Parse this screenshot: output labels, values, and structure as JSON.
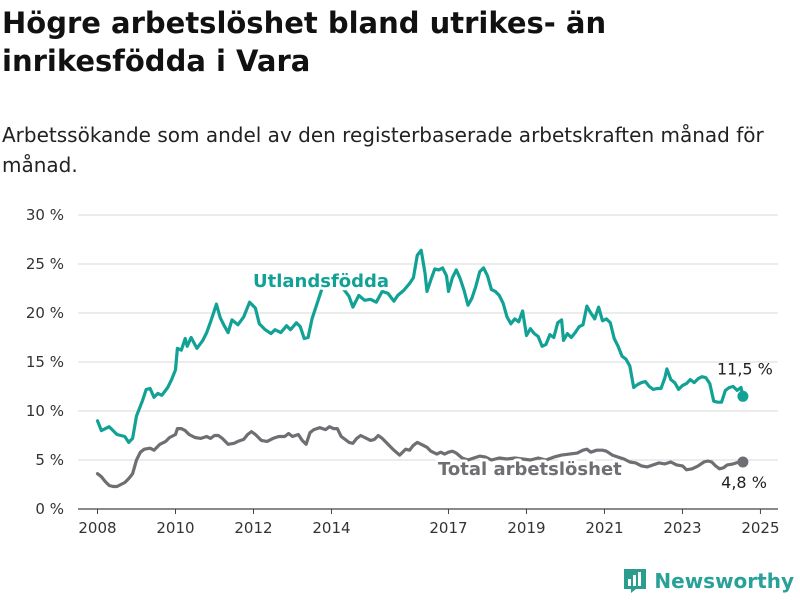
{
  "header": {
    "title": "Högre arbetslöshet bland utrikes- än inrikesfödda i Vara",
    "subtitle": "Arbetssökande som andel av den registerbaserade arbetskraften månad för månad."
  },
  "brand": {
    "name": "Newsworthy",
    "icon": "bar-chart-logo-icon",
    "color": "#2a9d8f"
  },
  "colors": {
    "foreign": "#12a195",
    "total": "#6e6e73",
    "grid": "#d9d9d9",
    "axis": "#444444"
  },
  "chart_data": {
    "type": "line",
    "ylim": [
      0,
      30
    ],
    "y_ticks": [
      0,
      5,
      10,
      15,
      20,
      25,
      30
    ],
    "y_tick_labels": [
      "0 %",
      "5 %",
      "10 %",
      "15 %",
      "20 %",
      "25 %",
      "30 %"
    ],
    "x_ticks": [
      2008,
      2010,
      2012,
      2014,
      2017,
      2019,
      2021,
      2023,
      2025
    ],
    "x_tick_labels": [
      "2008",
      "2010",
      "2012",
      "2014",
      "2017",
      "2019",
      "2021",
      "2023",
      "2025"
    ],
    "series": [
      {
        "name": "Utlandsfödda",
        "end_label": "11,5 %",
        "points": [
          [
            2008.0,
            9.0
          ],
          [
            2008.1,
            8.0
          ],
          [
            2008.3,
            8.4
          ],
          [
            2008.5,
            7.6
          ],
          [
            2008.7,
            7.4
          ],
          [
            2008.8,
            6.8
          ],
          [
            2008.9,
            7.2
          ],
          [
            2009.0,
            9.5
          ],
          [
            2009.15,
            11.0
          ],
          [
            2009.25,
            12.2
          ],
          [
            2009.35,
            12.3
          ],
          [
            2009.45,
            11.4
          ],
          [
            2009.55,
            11.8
          ],
          [
            2009.65,
            11.6
          ],
          [
            2009.8,
            12.4
          ],
          [
            2009.9,
            13.2
          ],
          [
            2010.0,
            14.2
          ],
          [
            2010.05,
            16.4
          ],
          [
            2010.15,
            16.2
          ],
          [
            2010.25,
            17.4
          ],
          [
            2010.3,
            16.6
          ],
          [
            2010.4,
            17.5
          ],
          [
            2010.55,
            16.4
          ],
          [
            2010.7,
            17.2
          ],
          [
            2010.8,
            18.0
          ],
          [
            2010.9,
            19.1
          ],
          [
            2011.0,
            20.3
          ],
          [
            2011.05,
            20.9
          ],
          [
            2011.15,
            19.5
          ],
          [
            2011.25,
            18.7
          ],
          [
            2011.35,
            18.0
          ],
          [
            2011.45,
            19.3
          ],
          [
            2011.6,
            18.8
          ],
          [
            2011.75,
            19.6
          ],
          [
            2011.9,
            21.1
          ],
          [
            2012.05,
            20.5
          ],
          [
            2012.15,
            18.9
          ],
          [
            2012.3,
            18.3
          ],
          [
            2012.45,
            17.9
          ],
          [
            2012.55,
            18.3
          ],
          [
            2012.7,
            18.0
          ],
          [
            2012.85,
            18.7
          ],
          [
            2012.95,
            18.3
          ],
          [
            2013.1,
            19.0
          ],
          [
            2013.2,
            18.6
          ],
          [
            2013.3,
            17.4
          ],
          [
            2013.4,
            17.5
          ],
          [
            2013.5,
            19.4
          ],
          [
            2013.6,
            20.6
          ],
          [
            2013.75,
            22.4
          ],
          [
            2013.85,
            23.2
          ],
          [
            2014.0,
            23.8
          ],
          [
            2014.15,
            23.0
          ],
          [
            2014.3,
            22.5
          ],
          [
            2014.45,
            21.7
          ],
          [
            2014.55,
            20.6
          ],
          [
            2014.7,
            21.8
          ],
          [
            2014.85,
            21.3
          ],
          [
            2015.0,
            21.4
          ],
          [
            2015.15,
            21.1
          ],
          [
            2015.3,
            22.2
          ],
          [
            2015.45,
            22.0
          ],
          [
            2015.6,
            21.2
          ],
          [
            2015.7,
            21.8
          ],
          [
            2015.85,
            22.3
          ],
          [
            2016.0,
            23.0
          ],
          [
            2016.1,
            23.6
          ],
          [
            2016.2,
            25.9
          ],
          [
            2016.3,
            26.4
          ],
          [
            2016.4,
            24.0
          ],
          [
            2016.45,
            22.2
          ],
          [
            2016.55,
            23.4
          ],
          [
            2016.65,
            24.5
          ],
          [
            2016.75,
            24.4
          ],
          [
            2016.85,
            24.6
          ],
          [
            2016.95,
            23.8
          ],
          [
            2017.0,
            22.2
          ],
          [
            2017.1,
            23.6
          ],
          [
            2017.2,
            24.4
          ],
          [
            2017.3,
            23.5
          ],
          [
            2017.4,
            22.3
          ],
          [
            2017.5,
            20.8
          ],
          [
            2017.6,
            21.5
          ],
          [
            2017.7,
            22.7
          ],
          [
            2017.8,
            24.2
          ],
          [
            2017.9,
            24.6
          ],
          [
            2018.0,
            23.8
          ],
          [
            2018.1,
            22.4
          ],
          [
            2018.2,
            22.2
          ],
          [
            2018.3,
            21.8
          ],
          [
            2018.4,
            21.0
          ],
          [
            2018.5,
            19.6
          ],
          [
            2018.6,
            18.9
          ],
          [
            2018.7,
            19.4
          ],
          [
            2018.8,
            19.1
          ],
          [
            2018.9,
            20.2
          ],
          [
            2019.0,
            17.7
          ],
          [
            2019.1,
            18.4
          ],
          [
            2019.2,
            17.9
          ],
          [
            2019.3,
            17.6
          ],
          [
            2019.4,
            16.6
          ],
          [
            2019.5,
            16.8
          ],
          [
            2019.6,
            17.8
          ],
          [
            2019.7,
            17.5
          ],
          [
            2019.8,
            19.0
          ],
          [
            2019.9,
            19.3
          ],
          [
            2019.95,
            17.2
          ],
          [
            2020.05,
            17.9
          ],
          [
            2020.15,
            17.5
          ],
          [
            2020.25,
            18.0
          ],
          [
            2020.35,
            18.6
          ],
          [
            2020.45,
            18.8
          ],
          [
            2020.55,
            20.7
          ],
          [
            2020.65,
            20.0
          ],
          [
            2020.75,
            19.4
          ],
          [
            2020.85,
            20.6
          ],
          [
            2020.95,
            19.2
          ],
          [
            2021.05,
            19.4
          ],
          [
            2021.15,
            19.0
          ],
          [
            2021.25,
            17.4
          ],
          [
            2021.35,
            16.6
          ],
          [
            2021.45,
            15.6
          ],
          [
            2021.55,
            15.3
          ],
          [
            2021.65,
            14.6
          ],
          [
            2021.75,
            12.4
          ],
          [
            2021.85,
            12.7
          ],
          [
            2021.95,
            12.9
          ],
          [
            2022.05,
            13.0
          ],
          [
            2022.15,
            12.5
          ],
          [
            2022.25,
            12.2
          ],
          [
            2022.35,
            12.3
          ],
          [
            2022.45,
            12.3
          ],
          [
            2022.55,
            13.4
          ],
          [
            2022.6,
            14.3
          ],
          [
            2022.7,
            13.2
          ],
          [
            2022.8,
            12.9
          ],
          [
            2022.9,
            12.2
          ],
          [
            2023.0,
            12.6
          ],
          [
            2023.1,
            12.8
          ],
          [
            2023.2,
            13.2
          ],
          [
            2023.3,
            12.9
          ],
          [
            2023.4,
            13.3
          ],
          [
            2023.5,
            13.5
          ],
          [
            2023.6,
            13.4
          ],
          [
            2023.7,
            12.8
          ],
          [
            2023.8,
            11.0
          ],
          [
            2023.9,
            10.9
          ],
          [
            2024.0,
            10.9
          ],
          [
            2024.1,
            12.1
          ],
          [
            2024.2,
            12.4
          ],
          [
            2024.3,
            12.5
          ],
          [
            2024.4,
            12.1
          ],
          [
            2024.5,
            12.4
          ],
          [
            2024.55,
            11.5
          ]
        ]
      },
      {
        "name": "Total arbetslöshet",
        "end_label": "4,8 %",
        "points": [
          [
            2008.0,
            3.6
          ],
          [
            2008.1,
            3.3
          ],
          [
            2008.2,
            2.8
          ],
          [
            2008.3,
            2.4
          ],
          [
            2008.4,
            2.3
          ],
          [
            2008.5,
            2.3
          ],
          [
            2008.6,
            2.5
          ],
          [
            2008.7,
            2.7
          ],
          [
            2008.8,
            3.1
          ],
          [
            2008.9,
            3.6
          ],
          [
            2009.0,
            5.0
          ],
          [
            2009.1,
            5.8
          ],
          [
            2009.2,
            6.1
          ],
          [
            2009.35,
            6.2
          ],
          [
            2009.45,
            6.0
          ],
          [
            2009.6,
            6.6
          ],
          [
            2009.75,
            6.9
          ],
          [
            2009.85,
            7.3
          ],
          [
            2010.0,
            7.6
          ],
          [
            2010.05,
            8.2
          ],
          [
            2010.15,
            8.2
          ],
          [
            2010.25,
            8.0
          ],
          [
            2010.35,
            7.6
          ],
          [
            2010.5,
            7.3
          ],
          [
            2010.65,
            7.2
          ],
          [
            2010.8,
            7.4
          ],
          [
            2010.9,
            7.2
          ],
          [
            2011.0,
            7.5
          ],
          [
            2011.1,
            7.5
          ],
          [
            2011.2,
            7.2
          ],
          [
            2011.35,
            6.6
          ],
          [
            2011.5,
            6.7
          ],
          [
            2011.6,
            6.9
          ],
          [
            2011.75,
            7.1
          ],
          [
            2011.85,
            7.6
          ],
          [
            2011.95,
            7.9
          ],
          [
            2012.05,
            7.6
          ],
          [
            2012.2,
            7.0
          ],
          [
            2012.35,
            6.9
          ],
          [
            2012.5,
            7.2
          ],
          [
            2012.65,
            7.4
          ],
          [
            2012.8,
            7.4
          ],
          [
            2012.9,
            7.7
          ],
          [
            2013.0,
            7.4
          ],
          [
            2013.15,
            7.6
          ],
          [
            2013.25,
            7.0
          ],
          [
            2013.35,
            6.6
          ],
          [
            2013.45,
            7.8
          ],
          [
            2013.55,
            8.1
          ],
          [
            2013.7,
            8.3
          ],
          [
            2013.85,
            8.1
          ],
          [
            2013.95,
            8.4
          ],
          [
            2014.05,
            8.2
          ],
          [
            2014.15,
            8.2
          ],
          [
            2014.25,
            7.4
          ],
          [
            2014.35,
            7.1
          ],
          [
            2014.45,
            6.8
          ],
          [
            2014.55,
            6.7
          ],
          [
            2014.65,
            7.2
          ],
          [
            2014.75,
            7.5
          ],
          [
            2014.9,
            7.2
          ],
          [
            2015.0,
            7.0
          ],
          [
            2015.1,
            7.1
          ],
          [
            2015.2,
            7.5
          ],
          [
            2015.3,
            7.2
          ],
          [
            2015.45,
            6.6
          ],
          [
            2015.6,
            6.0
          ],
          [
            2015.75,
            5.5
          ],
          [
            2015.9,
            6.1
          ],
          [
            2016.0,
            6.0
          ],
          [
            2016.1,
            6.5
          ],
          [
            2016.2,
            6.8
          ],
          [
            2016.3,
            6.6
          ],
          [
            2016.45,
            6.3
          ],
          [
            2016.55,
            5.9
          ],
          [
            2016.7,
            5.6
          ],
          [
            2016.8,
            5.8
          ],
          [
            2016.9,
            5.6
          ],
          [
            2017.0,
            5.8
          ],
          [
            2017.1,
            5.9
          ],
          [
            2017.2,
            5.7
          ],
          [
            2017.35,
            5.2
          ],
          [
            2017.5,
            5.0
          ],
          [
            2017.65,
            5.2
          ],
          [
            2017.8,
            5.4
          ],
          [
            2017.95,
            5.3
          ],
          [
            2018.1,
            5.0
          ],
          [
            2018.3,
            5.2
          ],
          [
            2018.5,
            5.1
          ],
          [
            2018.7,
            5.2
          ],
          [
            2018.9,
            5.1
          ],
          [
            2019.1,
            5.0
          ],
          [
            2019.3,
            5.2
          ],
          [
            2019.5,
            5.0
          ],
          [
            2019.7,
            5.3
          ],
          [
            2019.9,
            5.5
          ],
          [
            2020.1,
            5.6
          ],
          [
            2020.3,
            5.7
          ],
          [
            2020.45,
            6.0
          ],
          [
            2020.55,
            6.1
          ],
          [
            2020.65,
            5.8
          ],
          [
            2020.8,
            6.0
          ],
          [
            2020.95,
            6.0
          ],
          [
            2021.05,
            5.9
          ],
          [
            2021.2,
            5.5
          ],
          [
            2021.35,
            5.3
          ],
          [
            2021.5,
            5.1
          ],
          [
            2021.65,
            4.8
          ],
          [
            2021.8,
            4.7
          ],
          [
            2021.95,
            4.4
          ],
          [
            2022.1,
            4.3
          ],
          [
            2022.25,
            4.5
          ],
          [
            2022.4,
            4.7
          ],
          [
            2022.55,
            4.6
          ],
          [
            2022.7,
            4.8
          ],
          [
            2022.85,
            4.5
          ],
          [
            2023.0,
            4.4
          ],
          [
            2023.1,
            4.0
          ],
          [
            2023.25,
            4.1
          ],
          [
            2023.4,
            4.4
          ],
          [
            2023.55,
            4.8
          ],
          [
            2023.65,
            4.9
          ],
          [
            2023.75,
            4.8
          ],
          [
            2023.85,
            4.4
          ],
          [
            2023.95,
            4.1
          ],
          [
            2024.05,
            4.2
          ],
          [
            2024.15,
            4.5
          ],
          [
            2024.3,
            4.6
          ],
          [
            2024.45,
            4.8
          ],
          [
            2024.55,
            4.8
          ]
        ]
      }
    ]
  }
}
